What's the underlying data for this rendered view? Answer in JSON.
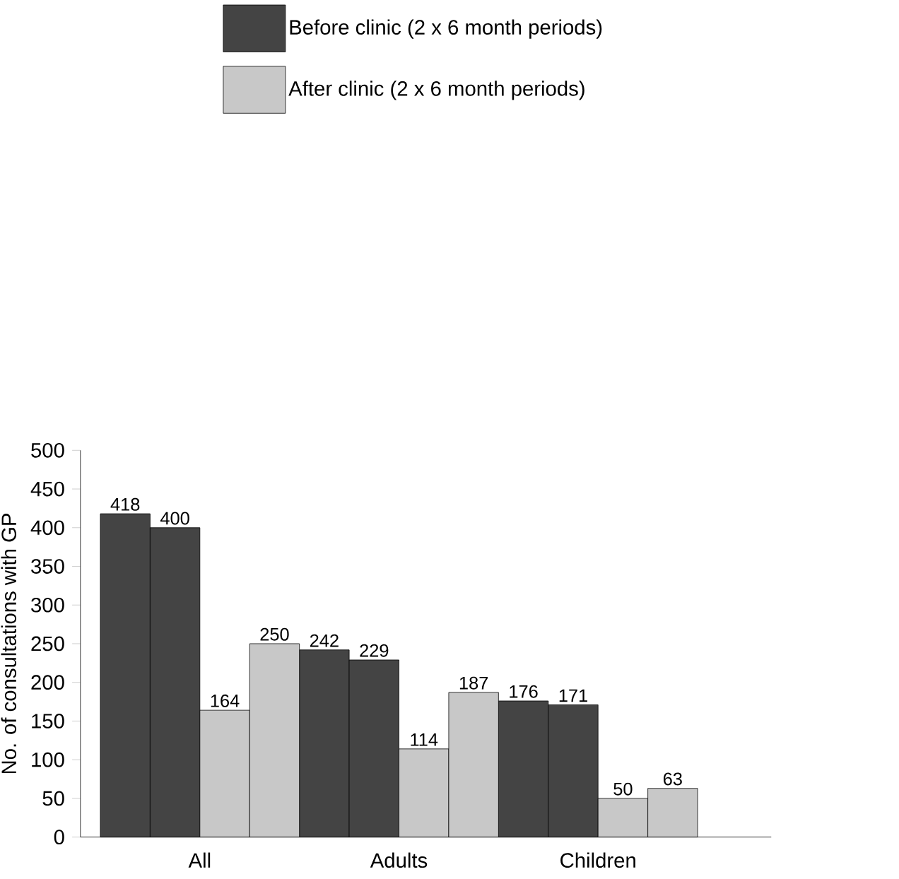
{
  "chart_data": {
    "type": "bar",
    "ylabel": "No. of consultations with GP",
    "categories": [
      "All",
      "Adults",
      "Children"
    ],
    "series": [
      {
        "name": "Before clinic (2 x 6 month periods)",
        "color": "#444444",
        "values": [
          418,
          242,
          176
        ]
      },
      {
        "color": "#444444",
        "values": [
          400,
          229,
          171
        ]
      },
      {
        "name": "After clinic (2 x 6 month periods)",
        "color": "#c8c8c8",
        "values": [
          164,
          114,
          50
        ]
      },
      {
        "color": "#c8c8c8",
        "values": [
          250,
          187,
          63
        ]
      }
    ],
    "ylim": [
      0,
      500
    ],
    "yticks": [
      0,
      50,
      100,
      150,
      200,
      250,
      300,
      350,
      400,
      450,
      500
    ],
    "data_labels": true,
    "legend": "top right",
    "grid": false
  }
}
